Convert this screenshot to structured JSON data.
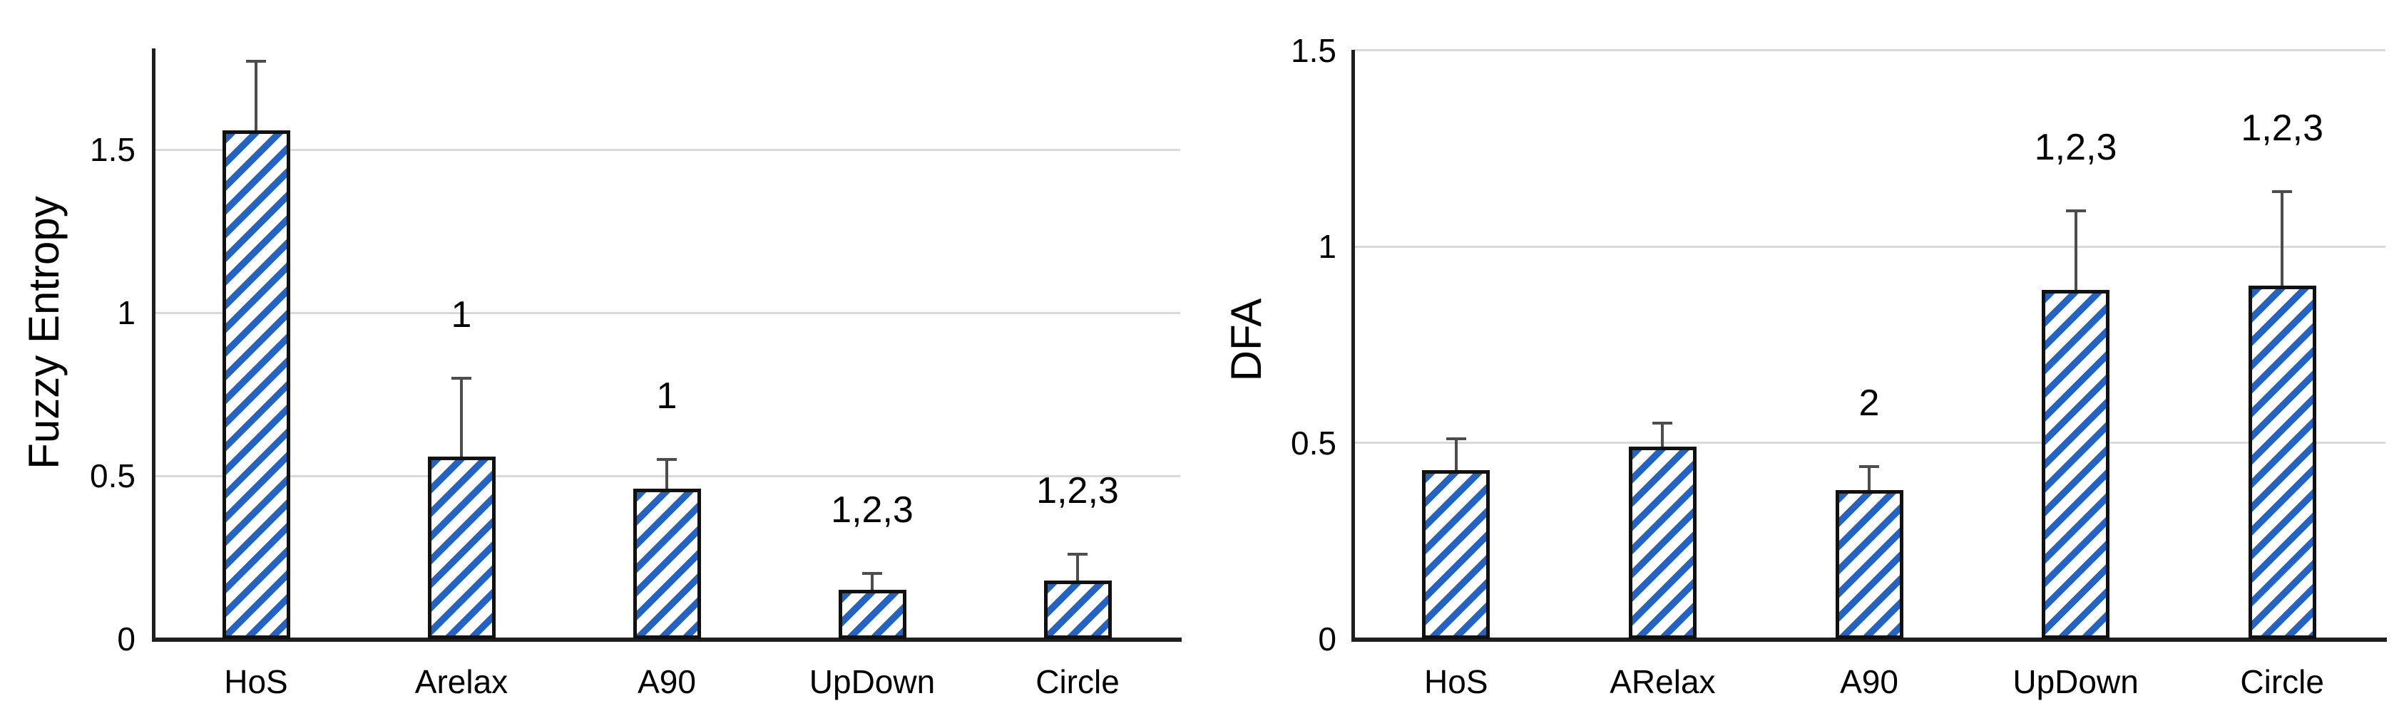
{
  "figure": {
    "background": "#ffffff",
    "bar_stripe_color": "#2263c3",
    "bar_border_color": "#111111",
    "error_bar_color": "#4d4d4d",
    "gridline_color": "#d9d9d9",
    "axis_color": "#1f1f1f",
    "text_color": "#000000"
  },
  "chart_data": [
    {
      "type": "bar",
      "title": "",
      "xlabel": "",
      "ylabel": "Fuzzy Entropy",
      "categories": [
        "HoS",
        "Arelax",
        "A90",
        "UpDown",
        "Circle"
      ],
      "values": [
        1.56,
        0.56,
        0.46,
        0.15,
        0.18
      ],
      "error_upper": [
        0.21,
        0.24,
        0.09,
        0.05,
        0.08
      ],
      "annotations": [
        "",
        "1",
        "1",
        "1,2,3",
        "1,2,3"
      ],
      "yticks": [
        0,
        0.5,
        1,
        1.5
      ],
      "ytick_labels": [
        "0",
        "0.5",
        "1",
        "1.5"
      ],
      "ylim": [
        0,
        1.81
      ],
      "grid": true,
      "legend": "none",
      "bar_style": "blue diagonal hatch, black outline, upper error bars only"
    },
    {
      "type": "bar",
      "title": "",
      "xlabel": "",
      "ylabel": "DFA",
      "categories": [
        "HoS",
        "ARelax",
        "A90",
        "UpDown",
        "Circle"
      ],
      "values": [
        0.43,
        0.49,
        0.38,
        0.89,
        0.9
      ],
      "error_upper": [
        0.08,
        0.06,
        0.06,
        0.2,
        0.24
      ],
      "annotations": [
        "",
        "",
        "2",
        "1,2,3",
        "1,2,3"
      ],
      "yticks": [
        0,
        0.5,
        1,
        1.5
      ],
      "ytick_labels": [
        "0",
        "0.5",
        "1",
        "1.5"
      ],
      "ylim": [
        0,
        1.5
      ],
      "grid": true,
      "legend": "none",
      "bar_style": "blue diagonal hatch, black outline, upper error bars only"
    }
  ]
}
